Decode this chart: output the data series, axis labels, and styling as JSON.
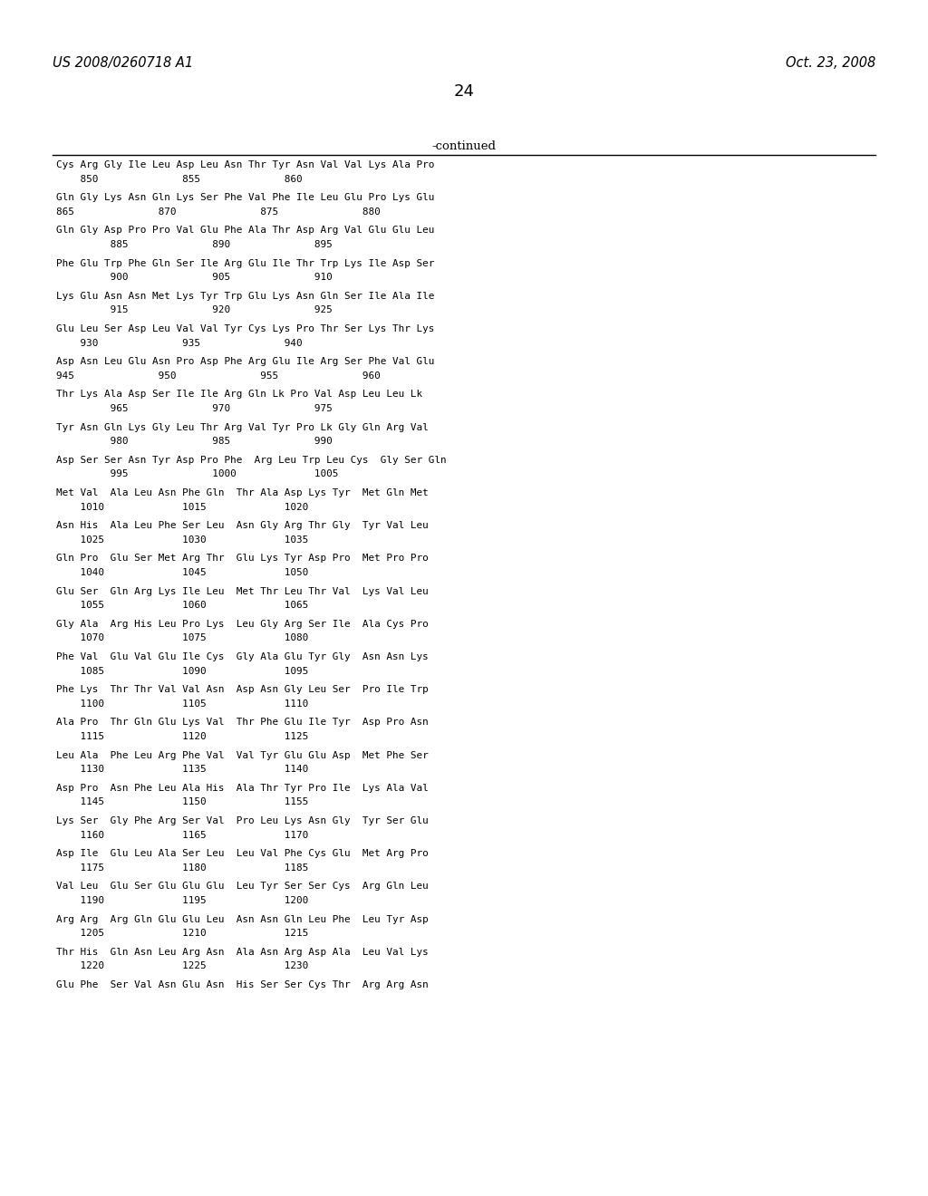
{
  "header_left": "US 2008/0260718 A1",
  "header_right": "Oct. 23, 2008",
  "page_number": "24",
  "continued_label": "-continued",
  "background_color": "#ffffff",
  "text_color": "#000000",
  "sequence_lines": [
    "Cys Arg Gly Ile Leu Asp Leu Asn Thr Tyr Asn Val Val Lys Ala Pro",
    "    850              855              860",
    "",
    "Gln Gly Lys Asn Gln Lys Ser Phe Val Phe Ile Leu Glu Pro Lys Glu",
    "865              870              875              880",
    "",
    "Gln Gly Asp Pro Pro Val Glu Phe Ala Thr Asp Arg Val Glu Glu Leu",
    "         885              890              895",
    "",
    "Phe Glu Trp Phe Gln Ser Ile Arg Glu Ile Thr Trp Lys Ile Asp Ser",
    "         900              905              910",
    "",
    "Lys Glu Asn Asn Met Lys Tyr Trp Glu Lys Asn Gln Ser Ile Ala Ile",
    "         915              920              925",
    "",
    "Glu Leu Ser Asp Leu Val Val Tyr Cys Lys Pro Thr Ser Lys Thr Lys",
    "    930              935              940",
    "",
    "Asp Asn Leu Glu Asn Pro Asp Phe Arg Glu Ile Arg Ser Phe Val Glu",
    "945              950              955              960",
    "",
    "Thr Lys Ala Asp Ser Ile Ile Arg Gln Lk Pro Val Asp Leu Leu Lk",
    "         965              970              975",
    "",
    "Tyr Asn Gln Lys Gly Leu Thr Arg Val Tyr Pro Lk Gly Gln Arg Val",
    "         980              985              990",
    "",
    "Asp Ser Ser Asn Tyr Asp Pro Phe  Arg Leu Trp Leu Cys  Gly Ser Gln",
    "         995              1000             1005",
    "",
    "Met Val  Ala Leu Asn Phe Gln  Thr Ala Asp Lys Tyr  Met Gln Met",
    "    1010             1015             1020",
    "",
    "Asn His  Ala Leu Phe Ser Leu  Asn Gly Arg Thr Gly  Tyr Val Leu",
    "    1025             1030             1035",
    "",
    "Gln Pro  Glu Ser Met Arg Thr  Glu Lys Tyr Asp Pro  Met Pro Pro",
    "    1040             1045             1050",
    "",
    "Glu Ser  Gln Arg Lys Ile Leu  Met Thr Leu Thr Val  Lys Val Leu",
    "    1055             1060             1065",
    "",
    "Gly Ala  Arg His Leu Pro Lys  Leu Gly Arg Ser Ile  Ala Cys Pro",
    "    1070             1075             1080",
    "",
    "Phe Val  Glu Val Glu Ile Cys  Gly Ala Glu Tyr Gly  Asn Asn Lys",
    "    1085             1090             1095",
    "",
    "Phe Lys  Thr Thr Val Val Asn  Asp Asn Gly Leu Ser  Pro Ile Trp",
    "    1100             1105             1110",
    "",
    "Ala Pro  Thr Gln Glu Lys Val  Thr Phe Glu Ile Tyr  Asp Pro Asn",
    "    1115             1120             1125",
    "",
    "Leu Ala  Phe Leu Arg Phe Val  Val Tyr Glu Glu Asp  Met Phe Ser",
    "    1130             1135             1140",
    "",
    "Asp Pro  Asn Phe Leu Ala His  Ala Thr Tyr Pro Ile  Lys Ala Val",
    "    1145             1150             1155",
    "",
    "Lys Ser  Gly Phe Arg Ser Val  Pro Leu Lys Asn Gly  Tyr Ser Glu",
    "    1160             1165             1170",
    "",
    "Asp Ile  Glu Leu Ala Ser Leu  Leu Val Phe Cys Glu  Met Arg Pro",
    "    1175             1180             1185",
    "",
    "Val Leu  Glu Ser Glu Glu Glu  Leu Tyr Ser Ser Cys  Arg Gln Leu",
    "    1190             1195             1200",
    "",
    "Arg Arg  Arg Gln Glu Glu Leu  Asn Asn Gln Leu Phe  Leu Tyr Asp",
    "    1205             1210             1215",
    "",
    "Thr His  Gln Asn Leu Arg Asn  Ala Asn Arg Asp Ala  Leu Val Lys",
    "    1220             1225             1230",
    "",
    "Glu Phe  Ser Val Asn Glu Asn  His Ser Ser Cys Thr  Arg Arg Asn"
  ]
}
